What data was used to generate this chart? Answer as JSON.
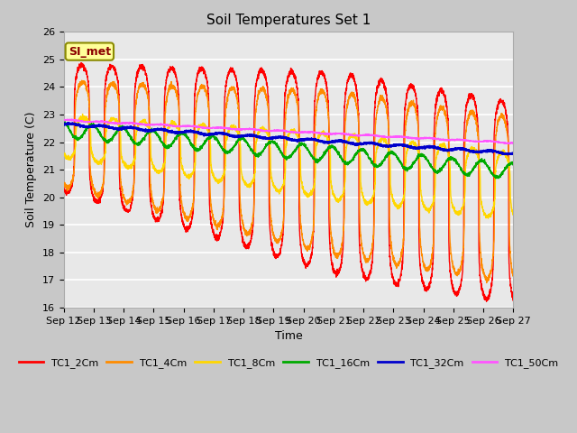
{
  "title": "Soil Temperatures Set 1",
  "xlabel": "Time",
  "ylabel": "Soil Temperature (C)",
  "ylim": [
    16.0,
    26.0
  ],
  "yticks": [
    16.0,
    17.0,
    18.0,
    19.0,
    20.0,
    21.0,
    22.0,
    23.0,
    24.0,
    25.0,
    26.0
  ],
  "xtick_labels": [
    "Sep 12",
    "Sep 13",
    "Sep 14",
    "Sep 15",
    "Sep 16",
    "Sep 17",
    "Sep 18",
    "Sep 19",
    "Sep 20",
    "Sep 21",
    "Sep 22",
    "Sep 23",
    "Sep 24",
    "Sep 25",
    "Sep 26",
    "Sep 27"
  ],
  "series_colors": {
    "TC1_2Cm": "#FF0000",
    "TC1_4Cm": "#FF8C00",
    "TC1_8Cm": "#FFD700",
    "TC1_16Cm": "#00AA00",
    "TC1_32Cm": "#0000CC",
    "TC1_50Cm": "#FF55FF"
  },
  "background_color": "#E0E0E0",
  "plot_bg": "#E8E8E8",
  "annotation_text": "SI_met",
  "annotation_bg": "#FFFF99",
  "annotation_border": "#8B8B00",
  "title_fontsize": 11,
  "axis_label_fontsize": 9,
  "tick_fontsize": 8
}
